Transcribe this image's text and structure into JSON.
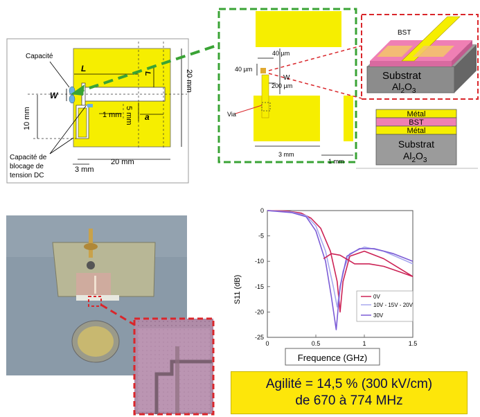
{
  "top_left": {
    "label_capacite": "Capacité",
    "label_L_top": "L",
    "label_L_right": "L",
    "label_W": "W",
    "label_a": "a",
    "label_1mm": "1 mm",
    "label_5mm": "5 mm",
    "label_10mm": "10 mm",
    "label_20mm_v": "20 mm",
    "label_20mm_h": "20 mm",
    "label_3mm": "3 mm",
    "label_blocage_1": "Capacité de",
    "label_blocage_2": "blocage de",
    "label_blocage_3": "tension DC"
  },
  "zoom": {
    "label_40um_a": "40 µm",
    "label_40um_b": "40 µm",
    "label_W": "W",
    "label_200um": "200 µm",
    "label_via": "Via",
    "label_3mm": "3 mm",
    "label_1mm": "1 mm"
  },
  "layers": {
    "bst": "BST",
    "substrat": "Substrat",
    "al2o3": "Al2O3",
    "stack": [
      "Métal",
      "BST",
      "Métal"
    ],
    "stack_substrat": "Substrat",
    "stack_al2o3": "Al2O3"
  },
  "banner": {
    "line1": "Agilité = 14,5 % (300 kV/cm)",
    "line2": "de 670 à 774 MHz"
  },
  "colors": {
    "gold": "#f6ee00",
    "green_dash": "#3aa335",
    "red_dash": "#d9262b",
    "bst_pink": "#ef7fb4",
    "substrate_gray": "#9b9b9b"
  },
  "chart_data": {
    "type": "line",
    "xlabel": "Frequence (GHz)",
    "ylabel": "S11 (dB)",
    "xlim": [
      0,
      1.5
    ],
    "ylim": [
      -25,
      0
    ],
    "xticks": [
      "0",
      "0.5",
      "1",
      "1.5"
    ],
    "yticks": [
      "0",
      "-5",
      "-10",
      "-15",
      "-20",
      "-25"
    ],
    "legend_position": "bottom-right",
    "series": [
      {
        "name": "0V",
        "color": "#cc2255",
        "x": [
          0,
          0.2,
          0.35,
          0.45,
          0.55,
          0.65,
          0.72,
          0.75,
          0.78,
          0.85,
          1.0,
          1.2,
          1.5
        ],
        "y": [
          0,
          -0.1,
          -0.5,
          -1.5,
          -3.5,
          -8,
          -14,
          -20,
          -14,
          -9,
          -8,
          -9.5,
          -13
        ]
      },
      {
        "name": "10V - 15V - 20V",
        "color": "#a8a8ee",
        "x": [
          0,
          0.25,
          0.4,
          0.5,
          0.6,
          0.68,
          0.72,
          0.78,
          0.85,
          1.0,
          1.2,
          1.5
        ],
        "y": [
          0,
          -0.3,
          -1,
          -3,
          -8,
          -15,
          -19,
          -12,
          -8.5,
          -7.2,
          -8,
          -10.5
        ]
      },
      {
        "name": "30V",
        "color": "#7b5bd6",
        "x": [
          0,
          0.25,
          0.4,
          0.5,
          0.6,
          0.66,
          0.71,
          0.75,
          0.82,
          0.95,
          1.1,
          1.3,
          1.5
        ],
        "y": [
          0,
          -0.4,
          -1.2,
          -4,
          -10,
          -17,
          -23.5,
          -15,
          -9,
          -7.5,
          -7.5,
          -8.5,
          -10
        ]
      },
      {
        "name": "",
        "color": "#cc2255",
        "x": [
          0.58,
          0.66,
          0.75,
          0.9,
          1.05,
          1.2,
          1.35,
          1.5
        ],
        "y": [
          -9.5,
          -8.5,
          -8.8,
          -10.5,
          -10.5,
          -11,
          -12,
          -13
        ]
      }
    ]
  }
}
